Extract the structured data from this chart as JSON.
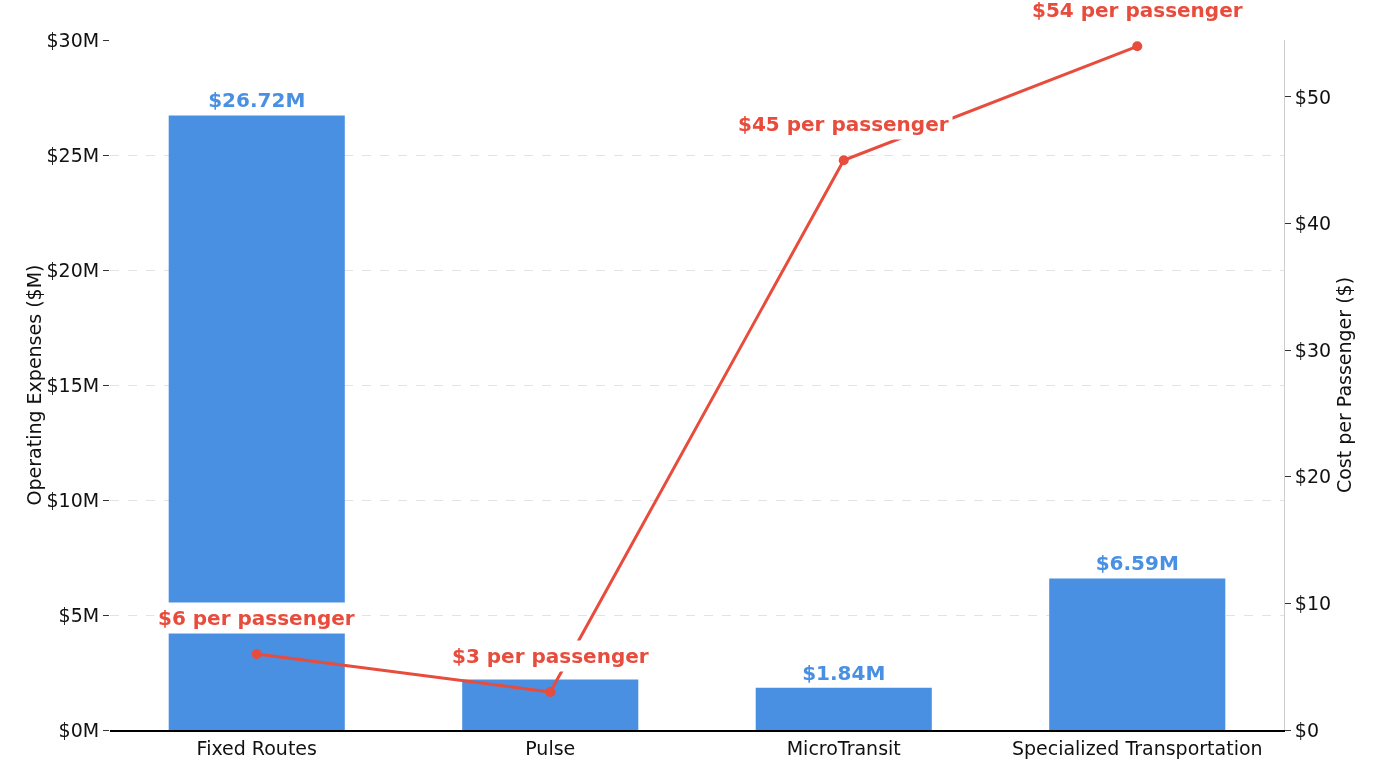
{
  "chart_data": {
    "type": "bar",
    "ylabel": "Operating Expenses ($M)",
    "y2label": "Cost per Passenger ($)",
    "categories": [
      "Fixed Routes",
      "Pulse",
      "MicroTransit",
      "Specialized Transportation"
    ],
    "series": [
      {
        "color": "#4a90e2",
        "values": [
          26.72,
          2.2,
          1.84,
          6.59
        ],
        "value_labels": [
          "$26.72M",
          null,
          "$1.84M",
          "$6.59M"
        ]
      },
      {
        "type": "line",
        "axis": "y2",
        "color": "#e74c3c",
        "marker": "circle",
        "values": [
          6,
          3,
          45,
          54
        ],
        "value_labels": [
          "$6 per passenger",
          "$3 per passenger",
          "$45 per passenger",
          "$54 per passenger"
        ]
      }
    ],
    "ylim": [
      0,
      30
    ],
    "yticks": [
      {
        "value": 0,
        "label": "$0M"
      },
      {
        "value": 5,
        "label": "$5M"
      },
      {
        "value": 10,
        "label": "$10M"
      },
      {
        "value": 15,
        "label": "$15M"
      },
      {
        "value": 20,
        "label": "$20M"
      },
      {
        "value": 25,
        "label": "$25M"
      },
      {
        "value": 30,
        "label": "$30M"
      }
    ],
    "y2lim": [
      0,
      54.5
    ],
    "y2ticks": [
      {
        "value": 0,
        "label": "$0"
      },
      {
        "value": 10,
        "label": "$10"
      },
      {
        "value": 20,
        "label": "$20"
      },
      {
        "value": 30,
        "label": "$30"
      },
      {
        "value": 40,
        "label": "$40"
      },
      {
        "value": 50,
        "label": "$50"
      }
    ],
    "grid": "y",
    "legend": false
  }
}
